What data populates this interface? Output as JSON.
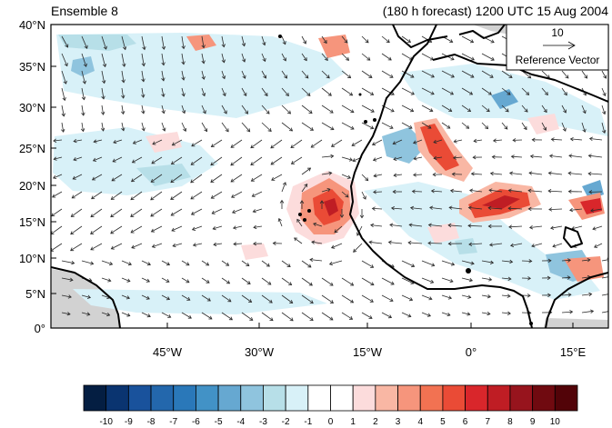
{
  "header": {
    "left_title": "Ensemble 8",
    "right_title": "(180 h forecast) 1200 UTC 15 Aug 2004"
  },
  "map": {
    "lat_labels": [
      "40°N",
      "35°N",
      "30°N",
      "25°N",
      "20°N",
      "15°N",
      "10°N",
      "5°N",
      "0°"
    ],
    "lon_labels": [
      "45°W",
      "30°W",
      "15°W",
      "0°",
      "15°E"
    ],
    "reference_vector": {
      "magnitude_label": "10",
      "caption": "Reference Vector"
    }
  },
  "colorbar": {
    "labels": [
      "-10",
      "-9",
      "-8",
      "-7",
      "-6",
      "-5",
      "-4",
      "-3",
      "-2",
      "-1",
      "0",
      "1",
      "2",
      "3",
      "4",
      "5",
      "6",
      "7",
      "8",
      "9",
      "10"
    ],
    "colors": [
      "#041e42",
      "#0a3470",
      "#19529c",
      "#2367ac",
      "#2a78b9",
      "#4292c6",
      "#66a8d1",
      "#8fc4de",
      "#b7dfe8",
      "#d8f1f8",
      "#ffffff",
      "#ffffff",
      "#fcdcdc",
      "#f9b7a4",
      "#f6957c",
      "#f27252",
      "#ea4b36",
      "#d9262b",
      "#bf1d24",
      "#97141d",
      "#700a10",
      "#520308"
    ]
  },
  "colors": {
    "land": "#d2d2d2",
    "coastline": "#000000",
    "arrow": "#2a2a2a"
  }
}
